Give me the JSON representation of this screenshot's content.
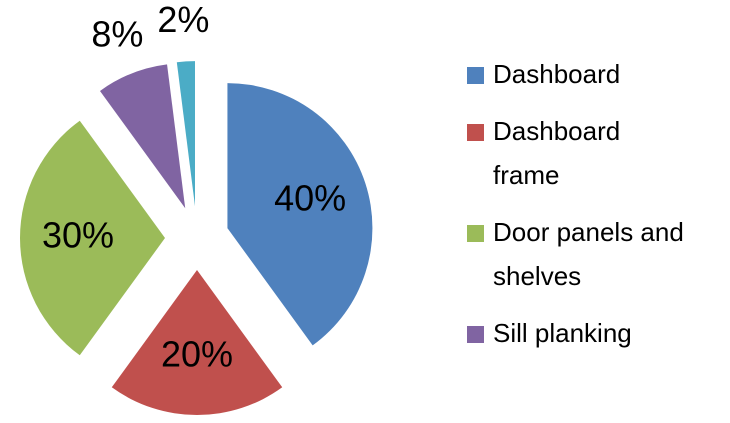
{
  "chart_data": {
    "type": "pie",
    "categories": [
      "Dashboard",
      "Dashboard frame",
      "Door panels and shelves",
      "Sill planking",
      null
    ],
    "values": [
      40,
      20,
      30,
      8,
      2
    ],
    "value_labels": [
      "40%",
      "20%",
      "30%",
      "8%",
      "2%"
    ],
    "colors": [
      "#4f81bd",
      "#c0504d",
      "#9bbb59",
      "#8064a2",
      "#4bacc6"
    ],
    "exploded": true,
    "legend": "right"
  }
}
